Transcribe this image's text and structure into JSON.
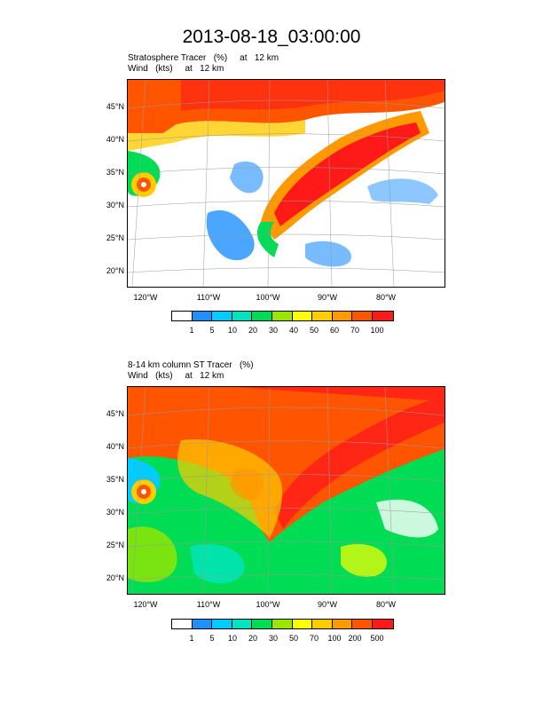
{
  "title": "2013-08-18_03:00:00",
  "panels": [
    {
      "header_line1": "Stratosphere Tracer   (%)     at   12 km",
      "header_line2": "Wind   (kts)     at   12 km",
      "colorbar_labels": [
        "1",
        "5",
        "10",
        "20",
        "30",
        "40",
        "50",
        "60",
        "70",
        "100"
      ]
    },
    {
      "header_line1": "8-14 km column ST Tracer   (%)",
      "header_line2": "Wind   (kts)     at   12 km",
      "colorbar_labels": [
        "1",
        "5",
        "10",
        "20",
        "30",
        "50",
        "70",
        "100",
        "200",
        "500"
      ]
    }
  ],
  "lat_labels": [
    "45°N",
    "40°N",
    "35°N",
    "30°N",
    "25°N",
    "20°N"
  ],
  "lon_labels": [
    "120°W",
    "110°W",
    "100°W",
    "90°W",
    "80°W"
  ],
  "colorbar_colors": [
    "#ffffff",
    "#1e90ff",
    "#00ccff",
    "#00e5c0",
    "#00dd55",
    "#99e600",
    "#ffff00",
    "#ffcc00",
    "#ff9900",
    "#ff5500",
    "#ff1a1a"
  ]
}
